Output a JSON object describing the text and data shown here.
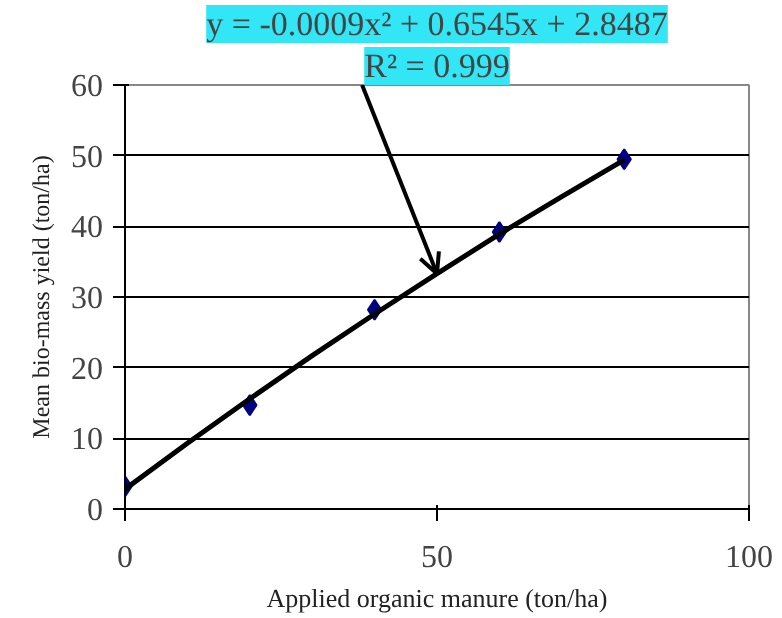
{
  "chart_data": {
    "type": "scatter",
    "xlabel": "Applied organic manure (ton/ha)",
    "ylabel": "Mean bio-mass yield (ton/ha)",
    "x": [
      0,
      20,
      40,
      60,
      80
    ],
    "series": [
      {
        "color": "#000080",
        "marker": "diamond",
        "values": [
          3.2,
          14.7,
          28.2,
          39.2,
          49.5
        ]
      },
      {
        "type": "line",
        "color": "#000000",
        "line_style": "solid",
        "x": [
          0,
          10,
          20,
          30,
          40,
          50,
          60,
          70,
          80
        ],
        "values": [
          2.8,
          9.3,
          15.6,
          21.7,
          27.6,
          33.3,
          38.9,
          44.2,
          49.4
        ]
      }
    ],
    "annotations": [
      {
        "text": "y = -0.0009x² + 0.6545x + 2.8487",
        "x": 50,
        "y": 33.3
      },
      "R² = 0.999"
    ],
    "xlim": [
      0,
      100
    ],
    "ylim": [
      0,
      60
    ],
    "xticks": [
      0,
      50,
      100
    ],
    "yticks": [
      0,
      10,
      20,
      30,
      40,
      50,
      60
    ],
    "grid": "y"
  }
}
